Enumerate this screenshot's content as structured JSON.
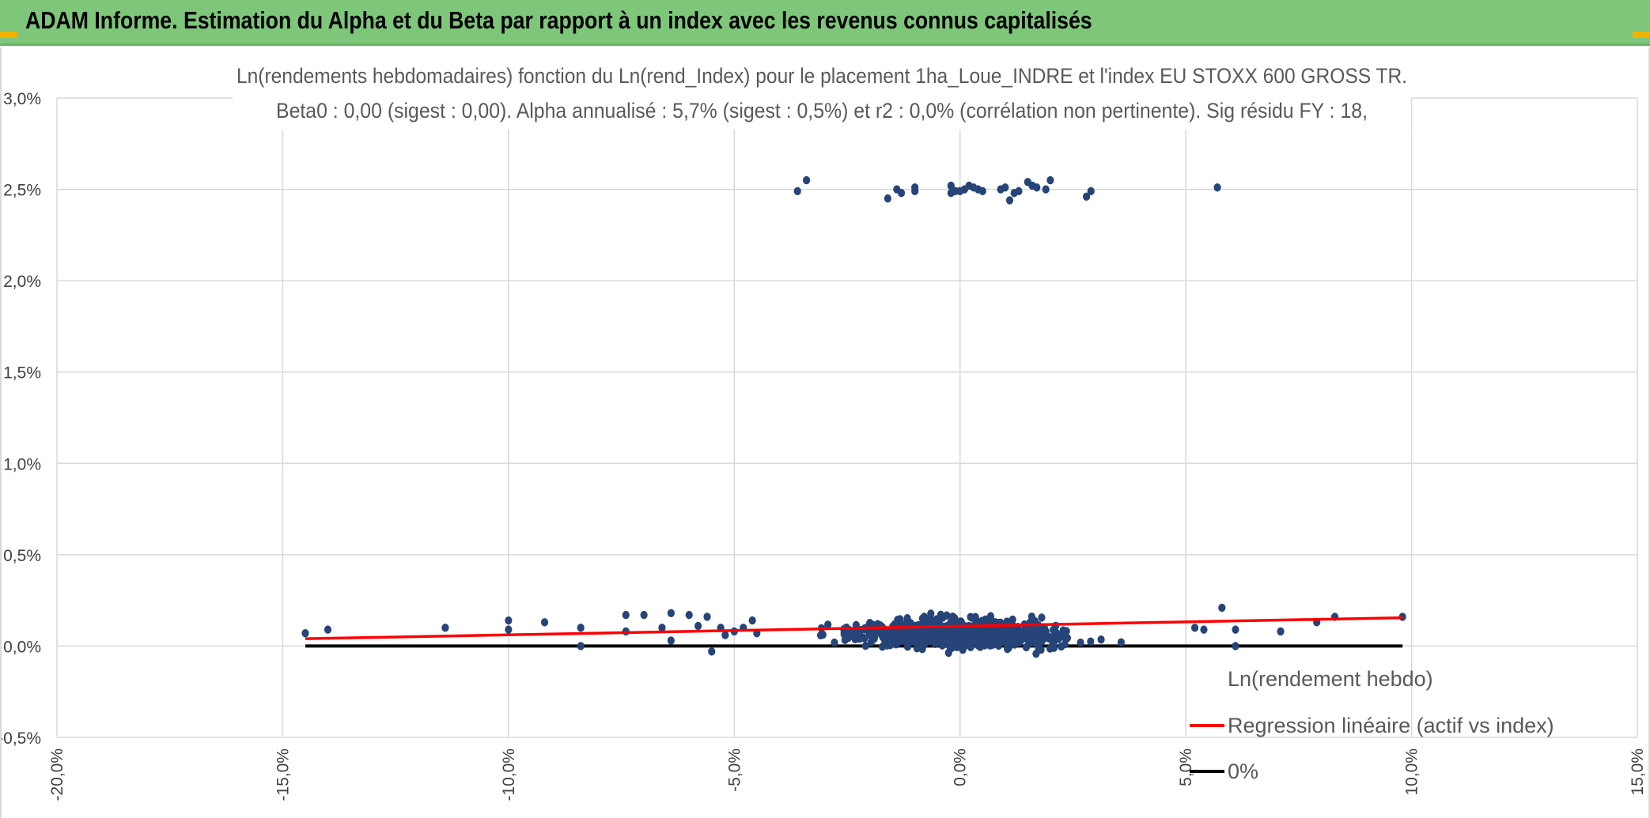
{
  "header": {
    "title": "ADAM Informe. Estimation du Alpha et du Beta par rapport à un index avec les revenus connus capitalisés"
  },
  "colors": {
    "header_bg": "#7dc67a",
    "accent_corner": "#f0b400",
    "points": "#264478",
    "regression": "#ff0000",
    "zero_line": "#000000",
    "grid": "#d9d9d9"
  },
  "chart_data": {
    "type": "scatter",
    "title": "Ln(rendements hebdomadaires) fonction du Ln(rend_Index) pour le placement 1ha_Loue_INDRE et l'index EU STOXX 600 GROSS TR.",
    "subtitle": "Beta0 : 0,00 (sigest : 0,00). Alpha annualisé : 5,7% (sigest : 0,5%) et r2 : 0,0% (corrélation non pertinente). Sig résidu FY : 18,",
    "xlabel": "",
    "ylabel": "",
    "xlim": [
      -0.2,
      0.15
    ],
    "ylim": [
      -0.005,
      0.03
    ],
    "x_tick_labels": [
      "-20,0%",
      "-15,0%",
      "-10,0%",
      "-5,0%",
      "0,0%",
      "5,0%",
      "10,0%",
      "15,0%"
    ],
    "y_tick_labels": [
      "-0,5%",
      "0,0%",
      "0,5%",
      "1,0%",
      "1,5%",
      "2,0%",
      "2,5%",
      "3,0%"
    ],
    "grid": true,
    "legend_position": "bottom-right",
    "series": [
      {
        "name": "Ln(rendement hebdo)",
        "kind": "points",
        "cluster_points": [
          [
            -0.036,
            0.0249
          ],
          [
            -0.034,
            0.0255
          ],
          [
            -0.016,
            0.0245
          ],
          [
            -0.014,
            0.025
          ],
          [
            -0.013,
            0.0248
          ],
          [
            -0.01,
            0.0251
          ],
          [
            -0.01,
            0.0249
          ],
          [
            -0.002,
            0.0252
          ],
          [
            -0.002,
            0.0248
          ],
          [
            -0.001,
            0.0249
          ],
          [
            0.0,
            0.0249
          ],
          [
            0.001,
            0.025
          ],
          [
            0.002,
            0.0252
          ],
          [
            0.003,
            0.0251
          ],
          [
            0.004,
            0.025
          ],
          [
            0.005,
            0.0249
          ],
          [
            0.009,
            0.025
          ],
          [
            0.01,
            0.0251
          ],
          [
            0.011,
            0.0244
          ],
          [
            0.012,
            0.0248
          ],
          [
            0.013,
            0.0249
          ],
          [
            0.015,
            0.0254
          ],
          [
            0.016,
            0.0252
          ],
          [
            0.017,
            0.0251
          ],
          [
            0.019,
            0.025
          ],
          [
            0.02,
            0.0255
          ],
          [
            0.028,
            0.0246
          ],
          [
            0.029,
            0.0249
          ],
          [
            0.057,
            0.0251
          ]
        ],
        "outlier_points": [
          [
            -0.145,
            0.0007
          ],
          [
            -0.14,
            0.0009
          ],
          [
            -0.114,
            0.001
          ],
          [
            -0.1,
            0.0014
          ],
          [
            -0.1,
            0.0009
          ],
          [
            -0.092,
            0.0013
          ],
          [
            -0.084,
            0.001
          ],
          [
            -0.084,
            0.0
          ],
          [
            -0.074,
            0.0017
          ],
          [
            -0.074,
            0.0008
          ],
          [
            -0.07,
            0.0017
          ],
          [
            -0.066,
            0.001
          ],
          [
            -0.064,
            0.0018
          ],
          [
            -0.064,
            0.0003
          ],
          [
            -0.06,
            0.0017
          ],
          [
            -0.058,
            0.0011
          ],
          [
            -0.056,
            0.0016
          ],
          [
            -0.055,
            -0.0003
          ],
          [
            -0.053,
            0.001
          ],
          [
            -0.052,
            0.0006
          ],
          [
            -0.05,
            0.0008
          ],
          [
            -0.048,
            0.001
          ],
          [
            -0.046,
            0.0014
          ],
          [
            -0.045,
            0.0007
          ],
          [
            0.052,
            0.001
          ],
          [
            0.054,
            0.0009
          ],
          [
            0.058,
            0.0021
          ],
          [
            0.061,
            0.0
          ],
          [
            0.061,
            0.0009
          ],
          [
            0.071,
            0.0008
          ],
          [
            0.079,
            0.0013
          ],
          [
            0.083,
            0.0016
          ],
          [
            0.098,
            0.0016
          ]
        ],
        "dense_cloud": {
          "count": 880,
          "x_center": 0.0,
          "x_spread": 0.016,
          "x_range": [
            -0.045,
            0.052
          ],
          "y_center": 0.0007,
          "y_spread": 0.0005,
          "y_range": [
            -0.0005,
            0.002
          ]
        }
      },
      {
        "name": "Regression linéaire (actif vs index)",
        "kind": "line",
        "x": [
          -0.145,
          0.098
        ],
        "y": [
          0.0004,
          0.00155
        ]
      },
      {
        "name": "0%",
        "kind": "line",
        "x": [
          -0.145,
          0.098
        ],
        "y": [
          0.0,
          0.0
        ]
      }
    ]
  }
}
